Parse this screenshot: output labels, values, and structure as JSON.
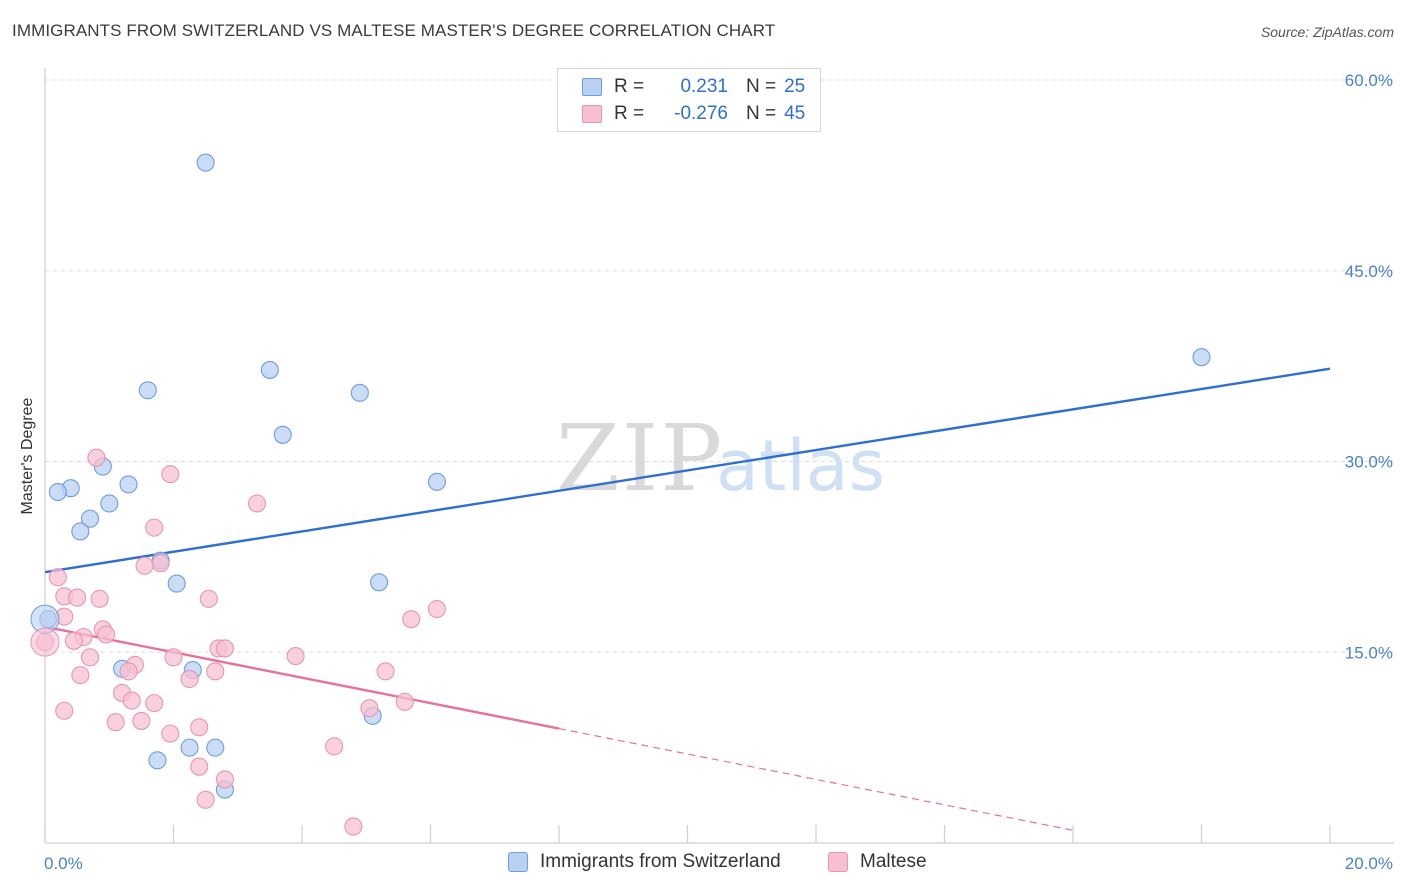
{
  "title": "IMMIGRANTS FROM SWITZERLAND VS MALTESE MASTER'S DEGREE CORRELATION CHART",
  "source": "Source: ZipAtlas.com",
  "colors": {
    "blue": "#2e6fd0",
    "blue_fill": "#b9d0f3",
    "pink": "#e8709a",
    "pink_fill": "#f7c0d2",
    "grid": "#dddddd"
  },
  "legend": {
    "rows": [
      {
        "r_label": "R =",
        "r_value": "0.231",
        "n_label": "N =",
        "n_value": "25"
      },
      {
        "r_label": "R =",
        "r_value": "-0.276",
        "n_label": "N =",
        "n_value": "45"
      }
    ]
  },
  "bottom_legend": [
    "Immigrants from Switzerland",
    "Maltese"
  ],
  "chart_data": {
    "type": "scatter",
    "title": "IMMIGRANTS FROM SWITZERLAND VS MALTESE MASTER'S DEGREE CORRELATION CHART",
    "xlabel": "",
    "ylabel": "Master's Degree",
    "xlim": [
      0,
      20
    ],
    "ylim": [
      0,
      60
    ],
    "x_ticks": [
      "0.0%",
      "20.0%"
    ],
    "y_ticks": [
      {
        "value": 15,
        "label": "15.0%"
      },
      {
        "value": 30,
        "label": "30.0%"
      },
      {
        "value": 45,
        "label": "45.0%"
      },
      {
        "value": 60,
        "label": "60.0%"
      }
    ],
    "grid": true,
    "legend_position": "top-center",
    "series": [
      {
        "name": "Immigrants from Switzerland",
        "color": "#2e6fd0",
        "trend": {
          "x0": 0,
          "y0": 21.3,
          "x1": 20,
          "y1": 37.3
        },
        "points": [
          [
            2.5,
            53.5
          ],
          [
            3.5,
            37.2
          ],
          [
            1.6,
            35.6
          ],
          [
            4.9,
            35.4
          ],
          [
            3.7,
            32.1
          ],
          [
            18.0,
            38.2
          ],
          [
            0.9,
            29.6
          ],
          [
            1.3,
            28.2
          ],
          [
            6.1,
            28.4
          ],
          [
            0.4,
            27.9
          ],
          [
            0.2,
            27.6
          ],
          [
            1.0,
            26.7
          ],
          [
            0.7,
            25.5
          ],
          [
            0.55,
            24.5
          ],
          [
            1.8,
            22.2
          ],
          [
            2.05,
            20.4
          ],
          [
            5.2,
            20.5
          ],
          [
            0.05,
            17.6
          ],
          [
            1.2,
            13.7
          ],
          [
            2.3,
            13.6
          ],
          [
            5.1,
            10.0
          ],
          [
            2.25,
            7.5
          ],
          [
            2.65,
            7.5
          ],
          [
            1.75,
            6.5
          ],
          [
            2.8,
            4.2
          ]
        ]
      },
      {
        "name": "Maltese",
        "color": "#e8709a",
        "trend": {
          "x0": 0,
          "y0": 17.0,
          "x1": 8.0,
          "y1": 9.0,
          "dash_x1": 16.0,
          "dash_y1": 1.0
        },
        "points": [
          [
            0.8,
            30.3
          ],
          [
            1.95,
            29.0
          ],
          [
            3.3,
            26.7
          ],
          [
            1.7,
            24.8
          ],
          [
            1.8,
            22.0
          ],
          [
            1.55,
            21.8
          ],
          [
            0.2,
            20.9
          ],
          [
            0.3,
            19.4
          ],
          [
            0.5,
            19.3
          ],
          [
            0.85,
            19.2
          ],
          [
            2.55,
            19.2
          ],
          [
            6.1,
            18.4
          ],
          [
            0.3,
            17.8
          ],
          [
            5.7,
            17.6
          ],
          [
            0.9,
            16.8
          ],
          [
            0.95,
            16.4
          ],
          [
            0.6,
            16.2
          ],
          [
            0.45,
            15.9
          ],
          [
            0.0,
            15.8
          ],
          [
            2.7,
            15.3
          ],
          [
            2.8,
            15.3
          ],
          [
            3.9,
            14.7
          ],
          [
            0.7,
            14.6
          ],
          [
            2.0,
            14.6
          ],
          [
            1.4,
            14.0
          ],
          [
            1.3,
            13.5
          ],
          [
            2.65,
            13.5
          ],
          [
            5.3,
            13.5
          ],
          [
            0.55,
            13.2
          ],
          [
            2.25,
            12.9
          ],
          [
            1.2,
            11.8
          ],
          [
            1.35,
            11.2
          ],
          [
            1.7,
            11.0
          ],
          [
            5.6,
            11.1
          ],
          [
            5.05,
            10.6
          ],
          [
            0.3,
            10.4
          ],
          [
            1.5,
            9.6
          ],
          [
            1.1,
            9.5
          ],
          [
            2.4,
            9.1
          ],
          [
            1.95,
            8.6
          ],
          [
            4.5,
            7.6
          ],
          [
            2.4,
            6.0
          ],
          [
            2.8,
            5.0
          ],
          [
            2.5,
            3.4
          ],
          [
            4.8,
            1.3
          ]
        ]
      }
    ]
  }
}
